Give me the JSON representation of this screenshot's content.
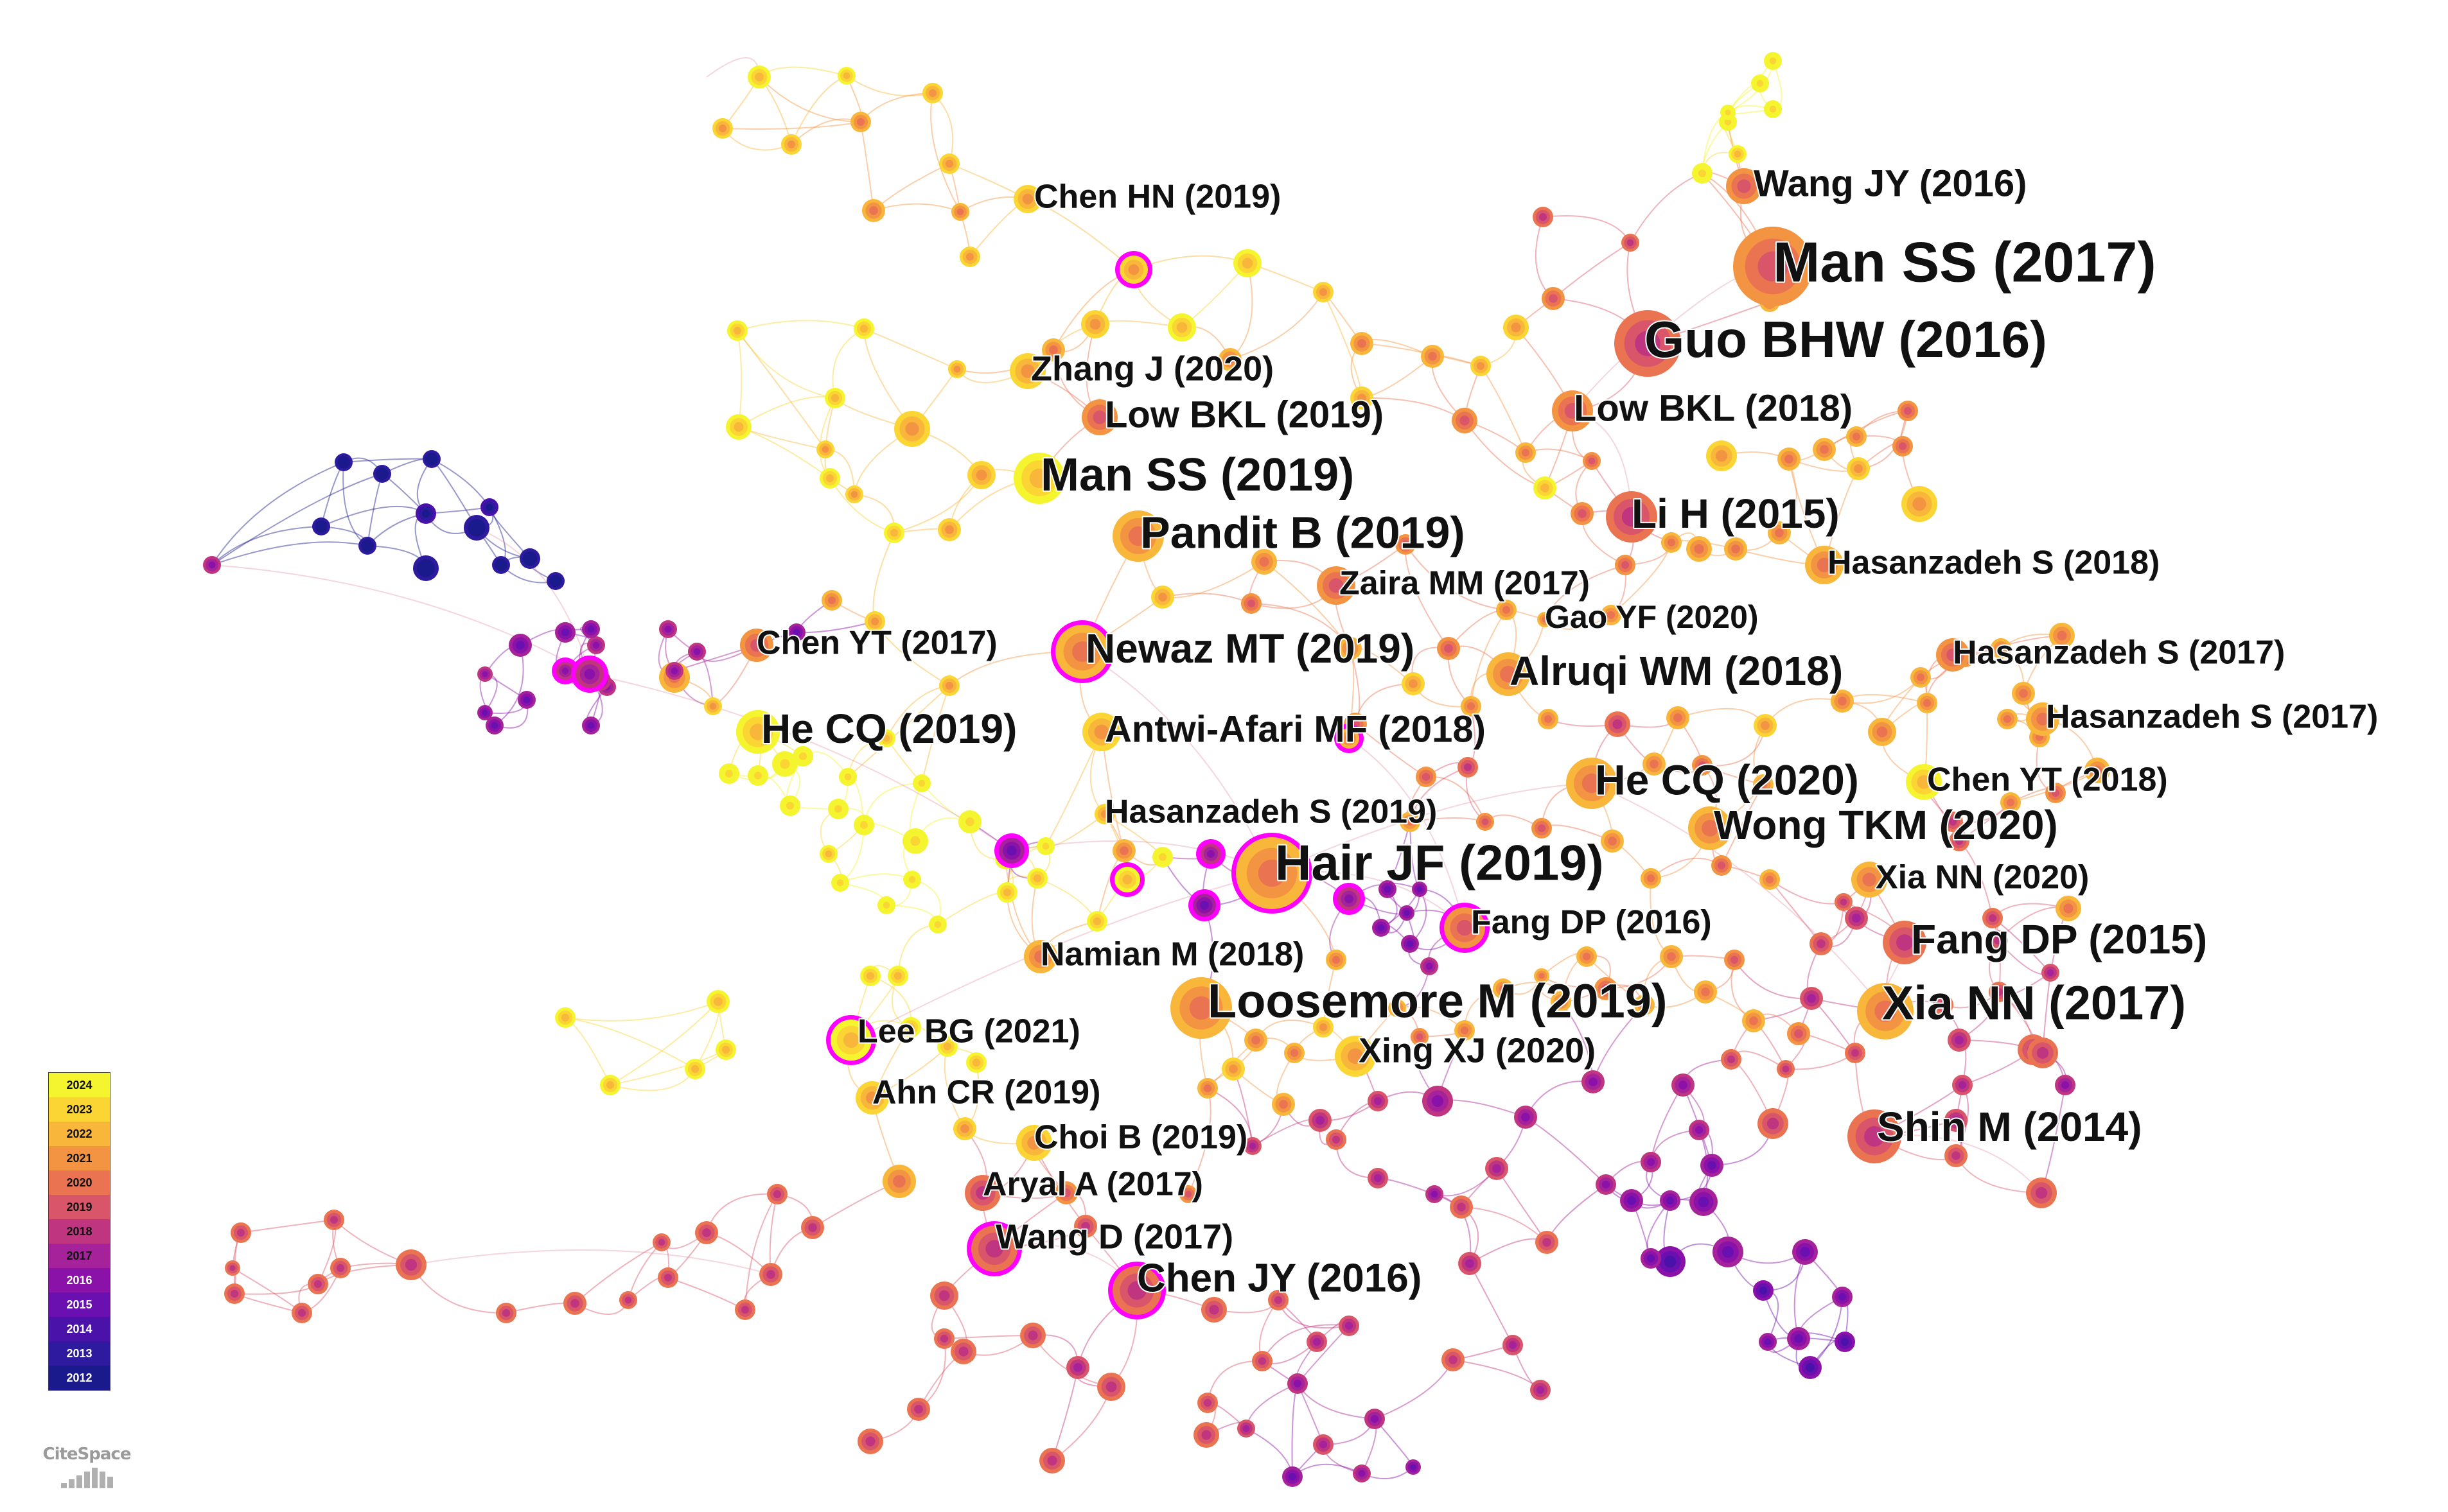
{
  "brand": {
    "name": "CiteSpace"
  },
  "legend": {
    "years": [
      "2024",
      "2023",
      "2022",
      "2021",
      "2020",
      "2019",
      "2018",
      "2017",
      "2016",
      "2015",
      "2014",
      "2013",
      "2012"
    ]
  },
  "year_colors": {
    "2012": "#1a1a8c",
    "2013": "#2d1a9e",
    "2014": "#4a12a8",
    "2015": "#6a0fb0",
    "2016": "#8a12a8",
    "2017": "#a5229a",
    "2018": "#c0357f",
    "2019": "#d9566a",
    "2020": "#ea7452",
    "2021": "#f39442",
    "2022": "#f8b63a",
    "2023": "#fbd534",
    "2024": "#f5f52f"
  },
  "burst_ring_color": "#ff00ff",
  "labels": [
    {
      "id": "wangjy2016",
      "text": "Wang JY (2016)"
    },
    {
      "id": "manss2017",
      "text": "Man SS (2017)"
    },
    {
      "id": "chenhn2019",
      "text": "Chen HN (2019)"
    },
    {
      "id": "guobhw2016",
      "text": "Guo BHW (2016)"
    },
    {
      "id": "zhangj2020",
      "text": "Zhang J (2020)"
    },
    {
      "id": "lowbkl2019",
      "text": "Low BKL (2019)"
    },
    {
      "id": "lowbkl2018",
      "text": "Low BKL (2018)"
    },
    {
      "id": "manss2019",
      "text": "Man SS (2019)"
    },
    {
      "id": "lih2015",
      "text": "Li H (2015)"
    },
    {
      "id": "panditb2019",
      "text": "Pandit B (2019)"
    },
    {
      "id": "zairamm2017",
      "text": "Zaira MM (2017)"
    },
    {
      "id": "hasanzadehs2018",
      "text": "Hasanzadeh S (2018)"
    },
    {
      "id": "gaoyf2020",
      "text": "Gao YF (2020)"
    },
    {
      "id": "chenyt2017",
      "text": "Chen YT (2017)"
    },
    {
      "id": "newazmt2019",
      "text": "Newaz MT (2019)"
    },
    {
      "id": "hasanzadehs2017a",
      "text": "Hasanzadeh S (2017)"
    },
    {
      "id": "alruqiwm2018",
      "text": "Alruqi WM (2018)"
    },
    {
      "id": "hasanzadehs2017b",
      "text": "Hasanzadeh S (2017)"
    },
    {
      "id": "hecq2019",
      "text": "He CQ (2019)"
    },
    {
      "id": "antwiafarimf2018",
      "text": "Antwi-Afari MF (2018)"
    },
    {
      "id": "hecq2020",
      "text": "He CQ (2020)"
    },
    {
      "id": "chenyt2018",
      "text": "Chen YT (2018)"
    },
    {
      "id": "hasanzadehs2019",
      "text": "Hasanzadeh S (2019)"
    },
    {
      "id": "wongtkm2020",
      "text": "Wong TKM (2020)"
    },
    {
      "id": "hairjf2019",
      "text": "Hair JF (2019)"
    },
    {
      "id": "xiann2020",
      "text": "Xia NN (2020)"
    },
    {
      "id": "fangdp2016",
      "text": "Fang DP (2016)"
    },
    {
      "id": "fangdp2015",
      "text": "Fang DP (2015)"
    },
    {
      "id": "namianm2018",
      "text": "Namian M (2018)"
    },
    {
      "id": "loosemorem2019",
      "text": "Loosemore M (2019)"
    },
    {
      "id": "xiann2017",
      "text": "Xia NN (2017)"
    },
    {
      "id": "leebg2021",
      "text": "Lee BG (2021)"
    },
    {
      "id": "xingxj2020",
      "text": "Xing XJ (2020)"
    },
    {
      "id": "ahncr2019",
      "text": "Ahn CR (2019)"
    },
    {
      "id": "shinm2014",
      "text": "Shin M (2014)"
    },
    {
      "id": "choib2019",
      "text": "Choi B (2019)"
    },
    {
      "id": "aryala2017",
      "text": "Aryal A (2017)"
    },
    {
      "id": "wangd2017",
      "text": "Wang D (2017)"
    },
    {
      "id": "chenjy2016",
      "text": "Chen JY (2016)"
    }
  ]
}
